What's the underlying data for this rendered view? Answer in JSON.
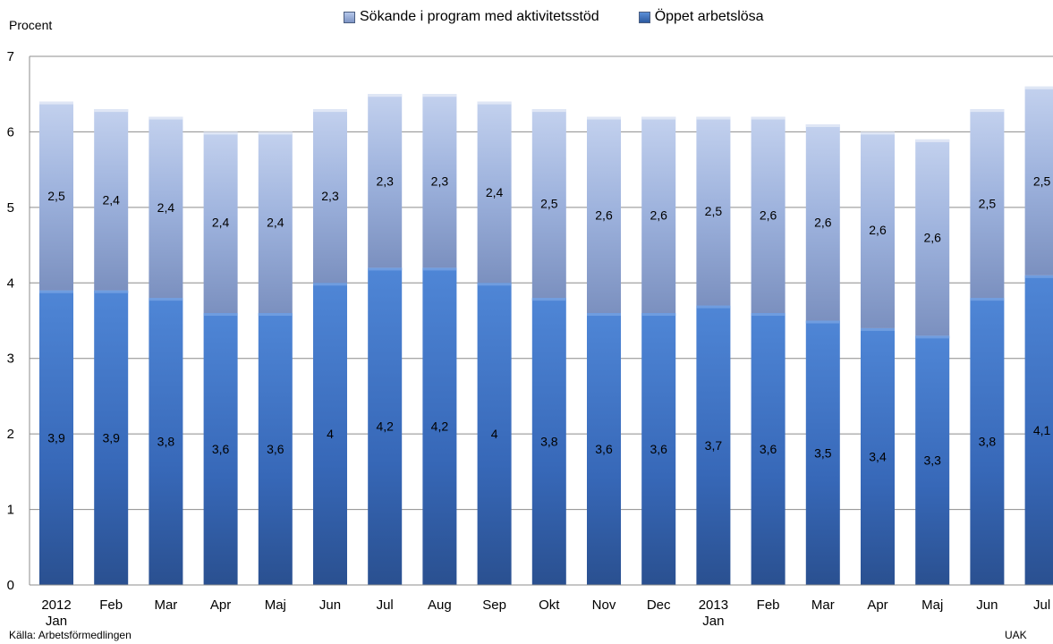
{
  "chart_data": {
    "type": "bar",
    "stacked": true,
    "title": "",
    "ylabel": "Procent",
    "xlabel": "",
    "ylim": [
      0,
      7
    ],
    "yticks": [
      "0",
      "1",
      "2",
      "3",
      "4",
      "5",
      "6",
      "7"
    ],
    "grid": true,
    "legend_position": "top",
    "categories": [
      [
        "2012",
        "Jan"
      ],
      [
        "Feb"
      ],
      [
        "Mar"
      ],
      [
        "Apr"
      ],
      [
        "Maj"
      ],
      [
        "Jun"
      ],
      [
        "Jul"
      ],
      [
        "Aug"
      ],
      [
        "Sep"
      ],
      [
        "Okt"
      ],
      [
        "Nov"
      ],
      [
        "Dec"
      ],
      [
        "2013",
        "Jan"
      ],
      [
        "Feb"
      ],
      [
        "Mar"
      ],
      [
        "Apr"
      ],
      [
        "Maj"
      ],
      [
        "Jun"
      ],
      [
        "Jul"
      ]
    ],
    "series": [
      {
        "name": "Öppet arbetslösa",
        "color": "#3a6fc0",
        "values": [
          3.9,
          3.9,
          3.8,
          3.6,
          3.6,
          4.0,
          4.2,
          4.2,
          4.0,
          3.8,
          3.6,
          3.6,
          3.7,
          3.6,
          3.5,
          3.4,
          3.3,
          3.8,
          4.1
        ],
        "labels": [
          "3,9",
          "3,9",
          "3,8",
          "3,6",
          "3,6",
          "4",
          "4,2",
          "4,2",
          "4",
          "3,8",
          "3,6",
          "3,6",
          "3,7",
          "3,6",
          "3,5",
          "3,4",
          "3,3",
          "3,8",
          "4,1"
        ]
      },
      {
        "name": "Sökande i program med aktivitetsstöd",
        "color": "#8ea6d6",
        "values": [
          2.5,
          2.4,
          2.4,
          2.4,
          2.4,
          2.3,
          2.3,
          2.3,
          2.4,
          2.5,
          2.6,
          2.6,
          2.5,
          2.6,
          2.6,
          2.6,
          2.6,
          2.5,
          2.5
        ],
        "labels": [
          "2,5",
          "2,4",
          "2,4",
          "2,4",
          "2,4",
          "2,3",
          "2,3",
          "2,3",
          "2,4",
          "2,5",
          "2,6",
          "2,6",
          "2,5",
          "2,6",
          "2,6",
          "2,6",
          "2,6",
          "2,5",
          "2,5"
        ]
      }
    ],
    "legend_order": [
      1,
      0
    ]
  },
  "footer": {
    "source": "Källa: Arbetsförmedlingen",
    "credit": "UAK"
  }
}
